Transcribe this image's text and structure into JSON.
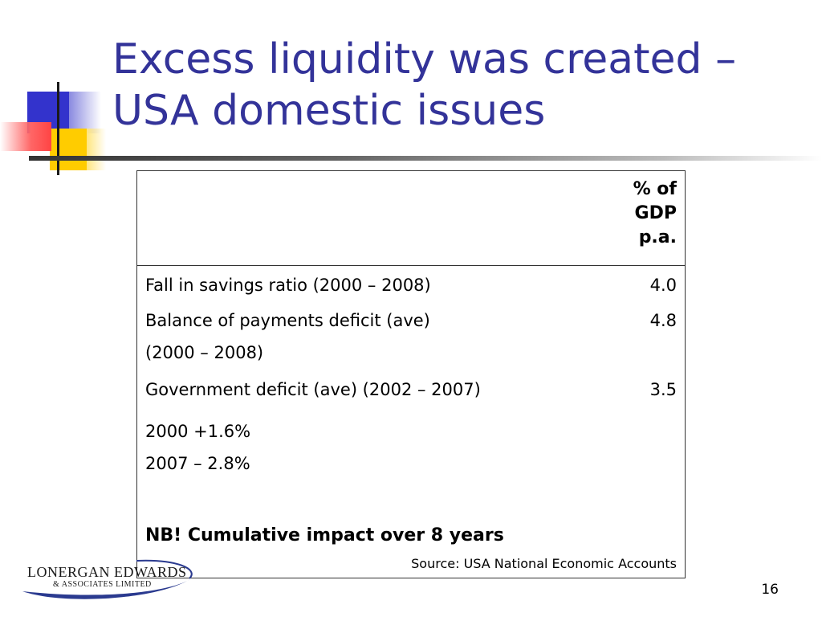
{
  "slide": {
    "title_line1": "Excess liquidity was created –",
    "title_line2": "USA domestic issues",
    "page_number": "16",
    "accent_color": "#333399"
  },
  "table": {
    "header": [
      "% of",
      "GDP",
      "p.a."
    ],
    "rows": [
      {
        "label": "Fall in savings ratio (2000 – 2008)",
        "value": "4.0"
      },
      {
        "label": "Balance of payments deficit (ave)",
        "label_cont": "(2000 – 2008)",
        "value": "4.8"
      },
      {
        "label": "Government deficit (ave) (2002 – 2007)",
        "value": "3.5"
      }
    ],
    "notes": [
      "2000 +1.6%",
      "2007 – 2.8%"
    ],
    "nb": "NB!  Cumulative impact over 8 years",
    "source": "Source:  USA National Economic Accounts"
  },
  "logo": {
    "main": "LONERGAN  EDWARDS",
    "sub": "& ASSOCIATES  LIMITED"
  }
}
